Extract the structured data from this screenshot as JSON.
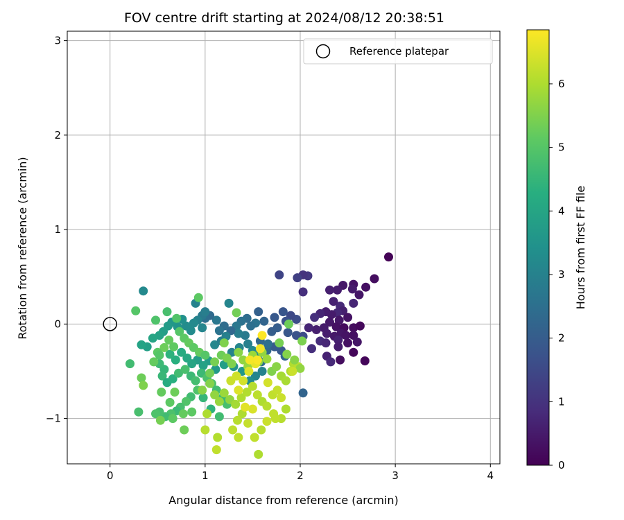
{
  "chart_data": {
    "type": "scatter",
    "title": "FOV centre drift starting at 2024/08/12 20:38:51",
    "xlabel": "Angular distance from reference (arcmin)",
    "ylabel": "Rotation from reference (arcmin)",
    "colorbar_label": "Hours from first FF file",
    "xlim": [
      -0.45,
      4.1
    ],
    "ylim": [
      -1.48,
      3.1
    ],
    "colorbar_range": [
      0,
      6.85
    ],
    "x_ticks": [
      0,
      1,
      2,
      3,
      4
    ],
    "y_ticks": [
      -1,
      0,
      1,
      2,
      3
    ],
    "colorbar_ticks": [
      0,
      1,
      2,
      3,
      4,
      5,
      6
    ],
    "grid": true,
    "colormap": "viridis",
    "legend": {
      "position": "top-right",
      "entries": [
        {
          "label": "Reference platepar",
          "marker": "open-circle"
        }
      ]
    },
    "reference_point": {
      "x": 0,
      "y": 0
    },
    "points": [
      [
        2.93,
        0.71,
        0.05
      ],
      [
        2.78,
        0.48,
        0.25
      ],
      [
        2.69,
        0.39,
        0.3
      ],
      [
        2.62,
        0.31,
        0.4
      ],
      [
        2.56,
        0.42,
        0.35
      ],
      [
        2.55,
        0.37,
        0.5
      ],
      [
        2.45,
        0.41,
        0.45
      ],
      [
        2.39,
        0.36,
        0.55
      ],
      [
        2.31,
        0.36,
        0.6
      ],
      [
        2.08,
        0.51,
        1.1
      ],
      [
        2.03,
        0.52,
        1.0
      ],
      [
        1.97,
        0.49,
        1.3
      ],
      [
        1.78,
        0.52,
        1.4
      ],
      [
        2.03,
        0.34,
        0.9
      ],
      [
        2.56,
        0.22,
        0.7
      ],
      [
        2.42,
        0.19,
        0.8
      ],
      [
        2.35,
        0.24,
        0.65
      ],
      [
        2.45,
        0.14,
        0.6
      ],
      [
        2.39,
        0.12,
        0.75
      ],
      [
        2.33,
        0.1,
        0.5
      ],
      [
        2.27,
        0.13,
        0.55
      ],
      [
        2.21,
        0.11,
        0.7
      ],
      [
        2.15,
        0.07,
        0.9
      ],
      [
        2.31,
        0.02,
        0.45
      ],
      [
        2.41,
        0.04,
        0.4
      ],
      [
        2.5,
        0.07,
        0.35
      ],
      [
        2.38,
        -0.03,
        0.3
      ],
      [
        2.46,
        -0.04,
        0.2
      ],
      [
        2.56,
        -0.04,
        0.25
      ],
      [
        2.63,
        -0.02,
        0.15
      ],
      [
        2.25,
        -0.04,
        0.5
      ],
      [
        2.17,
        -0.06,
        0.6
      ],
      [
        2.09,
        -0.04,
        0.7
      ],
      [
        2.28,
        -0.1,
        0.55
      ],
      [
        2.36,
        -0.13,
        0.45
      ],
      [
        2.43,
        -0.1,
        0.4
      ],
      [
        2.48,
        -0.12,
        0.35
      ],
      [
        2.21,
        -0.18,
        0.85
      ],
      [
        2.27,
        -0.2,
        0.75
      ],
      [
        2.4,
        -0.17,
        0.6
      ],
      [
        2.56,
        -0.12,
        0.3
      ],
      [
        2.5,
        -0.2,
        0.3
      ],
      [
        2.4,
        -0.24,
        0.55
      ],
      [
        2.28,
        -0.34,
        0.65
      ],
      [
        2.32,
        -0.4,
        0.8
      ],
      [
        2.42,
        -0.38,
        0.25
      ],
      [
        2.56,
        -0.3,
        0.1
      ],
      [
        2.68,
        -0.39,
        0.1
      ],
      [
        2.6,
        -0.19,
        0.4
      ],
      [
        2.12,
        -0.26,
        0.9
      ],
      [
        1.96,
        0.05,
        1.6
      ],
      [
        1.9,
        0.09,
        1.5
      ],
      [
        1.85,
        0.03,
        1.7
      ],
      [
        1.82,
        0.13,
        1.8
      ],
      [
        1.73,
        0.07,
        1.9
      ],
      [
        1.56,
        0.13,
        2.1
      ],
      [
        1.62,
        0.03,
        2.2
      ],
      [
        1.76,
        -0.04,
        2.0
      ],
      [
        1.87,
        -0.09,
        1.85
      ],
      [
        1.96,
        -0.12,
        1.75
      ],
      [
        2.03,
        -0.13,
        1.6
      ],
      [
        1.8,
        -0.28,
        1.9
      ],
      [
        1.73,
        -0.24,
        1.95
      ],
      [
        1.7,
        -0.08,
        2.0
      ],
      [
        1.58,
        -0.18,
        2.3
      ],
      [
        1.65,
        -0.28,
        2.3
      ],
      [
        1.59,
        -0.4,
        2.45
      ],
      [
        2.03,
        -0.73,
        2.2
      ],
      [
        1.84,
        -0.34,
        2.2
      ],
      [
        1.66,
        -0.21,
        2.5
      ],
      [
        1.53,
        0.01,
        2.6
      ],
      [
        1.48,
        -0.02,
        2.5
      ],
      [
        1.44,
        0.06,
        2.4
      ],
      [
        1.38,
        0.03,
        2.55
      ],
      [
        1.33,
        -0.02,
        2.7
      ],
      [
        1.42,
        -0.12,
        2.8
      ],
      [
        1.35,
        -0.1,
        2.9
      ],
      [
        1.27,
        -0.07,
        2.3
      ],
      [
        1.2,
        -0.02,
        2.4
      ],
      [
        1.15,
        -0.07,
        2.6
      ],
      [
        1.12,
        0.04,
        2.7
      ],
      [
        1.05,
        0.09,
        2.35
      ],
      [
        1.0,
        0.06,
        2.45
      ],
      [
        0.97,
        0.09,
        2.8
      ],
      [
        0.92,
        0.04,
        3.0
      ],
      [
        0.97,
        -0.04,
        3.1
      ],
      [
        0.88,
        0.01,
        3.2
      ],
      [
        0.85,
        -0.07,
        3.25
      ],
      [
        0.8,
        -0.02,
        3.3
      ],
      [
        0.76,
        0.05,
        3.4
      ],
      [
        0.71,
        -0.03,
        3.5
      ],
      [
        0.65,
        0.02,
        3.6
      ],
      [
        0.61,
        -0.02,
        3.7
      ],
      [
        0.56,
        -0.08,
        3.8
      ],
      [
        0.52,
        -0.12,
        3.9
      ],
      [
        0.45,
        -0.15,
        4.0
      ],
      [
        0.39,
        -0.24,
        3.85
      ],
      [
        0.33,
        -0.22,
        3.95
      ],
      [
        0.35,
        0.35,
        3.2
      ],
      [
        0.9,
        0.22,
        3.0
      ],
      [
        1.25,
        0.22,
        3.1
      ],
      [
        1.0,
        0.13,
        2.9
      ],
      [
        1.22,
        -0.13,
        2.95
      ],
      [
        1.1,
        -0.22,
        3.15
      ],
      [
        1.17,
        -0.18,
        2.9
      ],
      [
        1.28,
        -0.3,
        3.0
      ],
      [
        1.36,
        -0.25,
        3.1
      ],
      [
        1.45,
        -0.21,
        2.95
      ],
      [
        1.5,
        -0.28,
        3.2
      ],
      [
        1.55,
        -0.34,
        3.3
      ],
      [
        1.6,
        -0.5,
        3.0
      ],
      [
        1.53,
        -0.55,
        3.1
      ],
      [
        1.47,
        -0.6,
        3.3
      ],
      [
        1.39,
        -0.5,
        3.6
      ],
      [
        1.3,
        -0.45,
        3.5
      ],
      [
        1.2,
        -0.43,
        3.8
      ],
      [
        1.11,
        -0.48,
        3.7
      ],
      [
        1.04,
        -0.39,
        3.75
      ],
      [
        0.98,
        -0.44,
        3.9
      ],
      [
        0.92,
        -0.38,
        3.8
      ],
      [
        0.86,
        -0.42,
        4.0
      ],
      [
        0.81,
        -0.36,
        4.1
      ],
      [
        0.75,
        -0.3,
        4.2
      ],
      [
        0.69,
        -0.38,
        4.3
      ],
      [
        0.63,
        -0.32,
        4.4
      ],
      [
        0.57,
        -0.48,
        4.5
      ],
      [
        0.52,
        -0.42,
        4.6
      ],
      [
        0.55,
        -0.55,
        4.55
      ],
      [
        0.6,
        -0.62,
        4.2
      ],
      [
        0.66,
        -0.58,
        4.3
      ],
      [
        0.72,
        -0.52,
        4.7
      ],
      [
        0.79,
        -0.48,
        4.8
      ],
      [
        0.85,
        -0.55,
        4.6
      ],
      [
        0.9,
        -0.6,
        4.75
      ],
      [
        0.96,
        -0.52,
        4.6
      ],
      [
        1.02,
        -0.57,
        4.85
      ],
      [
        1.07,
        -0.63,
        4.9
      ],
      [
        1.12,
        -0.7,
        4.7
      ],
      [
        1.18,
        -0.78,
        4.6
      ],
      [
        1.23,
        -0.85,
        4.8
      ],
      [
        1.15,
        -0.98,
        4.7
      ],
      [
        1.06,
        -0.9,
        4.4
      ],
      [
        0.98,
        -0.78,
        4.5
      ],
      [
        0.92,
        -0.7,
        4.9
      ],
      [
        0.85,
        -0.77,
        4.7
      ],
      [
        0.8,
        -0.82,
        4.95
      ],
      [
        0.74,
        -0.88,
        4.8
      ],
      [
        0.7,
        -0.92,
        4.6
      ],
      [
        0.64,
        -0.95,
        4.85
      ],
      [
        0.58,
        -0.98,
        4.7
      ],
      [
        0.52,
        -0.93,
        4.8
      ],
      [
        0.48,
        -0.95,
        4.9
      ],
      [
        0.3,
        -0.93,
        4.8
      ],
      [
        0.21,
        -0.42,
        4.7
      ],
      [
        0.27,
        0.14,
        5.0
      ],
      [
        0.48,
        0.04,
        4.9
      ],
      [
        0.6,
        0.13,
        4.8
      ],
      [
        0.7,
        0.06,
        4.95
      ],
      [
        0.73,
        -0.08,
        5.0
      ],
      [
        0.78,
        -0.15,
        5.1
      ],
      [
        0.83,
        -0.2,
        5.2
      ],
      [
        0.88,
        -0.25,
        5.1
      ],
      [
        0.94,
        -0.3,
        5.2
      ],
      [
        1.0,
        -0.33,
        5.0
      ],
      [
        0.93,
        0.28,
        5.1
      ],
      [
        0.67,
        -0.24,
        5.15
      ],
      [
        0.62,
        -0.17,
        5.2
      ],
      [
        0.57,
        -0.25,
        5.3
      ],
      [
        0.5,
        -0.3,
        5.1
      ],
      [
        0.46,
        -0.4,
        5.2
      ],
      [
        0.52,
        -0.33,
        5.0
      ],
      [
        0.54,
        -0.72,
        5.2
      ],
      [
        0.63,
        -0.83,
        5.1
      ],
      [
        0.68,
        -0.72,
        5.3
      ],
      [
        0.77,
        -0.95,
        5.2
      ],
      [
        0.66,
        -1.0,
        5.1
      ],
      [
        0.78,
        -1.12,
        5.3
      ],
      [
        0.53,
        -1.02,
        5.4
      ],
      [
        0.86,
        -0.93,
        5.1
      ],
      [
        0.33,
        -0.57,
        5.3
      ],
      [
        0.35,
        -0.65,
        5.5
      ],
      [
        1.05,
        -0.52,
        5.35
      ],
      [
        1.1,
        -0.4,
        5.4
      ],
      [
        1.17,
        -0.33,
        5.3
      ],
      [
        1.23,
        -0.36,
        5.45
      ],
      [
        1.28,
        -0.42,
        5.5
      ],
      [
        1.35,
        -0.3,
        5.6
      ],
      [
        1.4,
        -0.38,
        5.7
      ],
      [
        1.45,
        -0.45,
        5.75
      ],
      [
        1.5,
        -0.33,
        5.8
      ],
      [
        1.56,
        -0.4,
        5.65
      ],
      [
        1.6,
        -0.3,
        5.7
      ],
      [
        1.65,
        -0.37,
        5.8
      ],
      [
        1.7,
        -0.5,
        5.5
      ],
      [
        1.75,
        -0.45,
        5.6
      ],
      [
        1.8,
        -0.55,
        5.9
      ],
      [
        1.85,
        -0.6,
        5.95
      ],
      [
        1.9,
        -0.5,
        6.0
      ],
      [
        1.93,
        -0.42,
        6.05
      ],
      [
        1.98,
        -0.45,
        6.1
      ],
      [
        1.78,
        -0.2,
        5.4
      ],
      [
        1.86,
        -0.32,
        5.55
      ],
      [
        1.94,
        -0.38,
        5.6
      ],
      [
        2.0,
        -0.47,
        5.7
      ],
      [
        2.02,
        -0.18,
        5.45
      ],
      [
        1.88,
        0.0,
        5.3
      ],
      [
        1.33,
        0.12,
        5.35
      ],
      [
        1.2,
        -0.2,
        5.5
      ],
      [
        1.05,
        -0.63,
        5.55
      ],
      [
        0.97,
        -0.7,
        5.6
      ],
      [
        1.1,
        -0.75,
        5.7
      ],
      [
        1.15,
        -0.82,
        5.75
      ],
      [
        1.2,
        -0.73,
        5.8
      ],
      [
        1.26,
        -0.8,
        5.7
      ],
      [
        1.32,
        -0.85,
        5.9
      ],
      [
        1.38,
        -0.78,
        6.0
      ],
      [
        1.44,
        -0.72,
        6.05
      ],
      [
        1.5,
        -0.66,
        6.1
      ],
      [
        1.55,
        -0.75,
        6.15
      ],
      [
        1.6,
        -0.82,
        6.0
      ],
      [
        1.65,
        -0.87,
        6.1
      ],
      [
        1.71,
        -0.75,
        6.2
      ],
      [
        1.76,
        -0.7,
        6.25
      ],
      [
        1.8,
        -0.78,
        6.3
      ],
      [
        1.85,
        -0.9,
        6.0
      ],
      [
        1.8,
        -1.0,
        6.1
      ],
      [
        1.72,
        -0.95,
        6.2
      ],
      [
        1.65,
        -1.03,
        6.3
      ],
      [
        1.59,
        -1.12,
        6.1
      ],
      [
        1.52,
        -1.2,
        6.2
      ],
      [
        1.45,
        -1.05,
        6.25
      ],
      [
        1.39,
        -0.95,
        6.0
      ],
      [
        1.34,
        -1.02,
        6.1
      ],
      [
        1.29,
        -1.12,
        6.15
      ],
      [
        1.35,
        -1.2,
        6.2
      ],
      [
        1.13,
        -1.2,
        6.05
      ],
      [
        1.0,
        -1.12,
        6.1
      ],
      [
        1.02,
        -0.95,
        6.0
      ],
      [
        1.12,
        -1.33,
        6.2
      ],
      [
        1.56,
        -1.38,
        6.0
      ],
      [
        1.27,
        -0.6,
        6.3
      ],
      [
        1.33,
        -0.55,
        6.35
      ],
      [
        1.4,
        -0.6,
        6.4
      ],
      [
        1.46,
        -0.5,
        6.5
      ],
      [
        1.53,
        -0.42,
        6.6
      ],
      [
        1.58,
        -0.26,
        6.7
      ],
      [
        1.6,
        -0.12,
        6.85
      ],
      [
        1.55,
        -0.38,
        6.8
      ],
      [
        1.47,
        -0.38,
        6.75
      ],
      [
        1.66,
        -0.62,
        6.4
      ],
      [
        1.35,
        -0.7,
        6.5
      ],
      [
        1.5,
        -0.9,
        6.45
      ],
      [
        1.42,
        -0.88,
        6.55
      ],
      [
        1.74,
        -1.0,
        6.2
      ],
      [
        1.92,
        -0.5,
        6.3
      ]
    ]
  }
}
